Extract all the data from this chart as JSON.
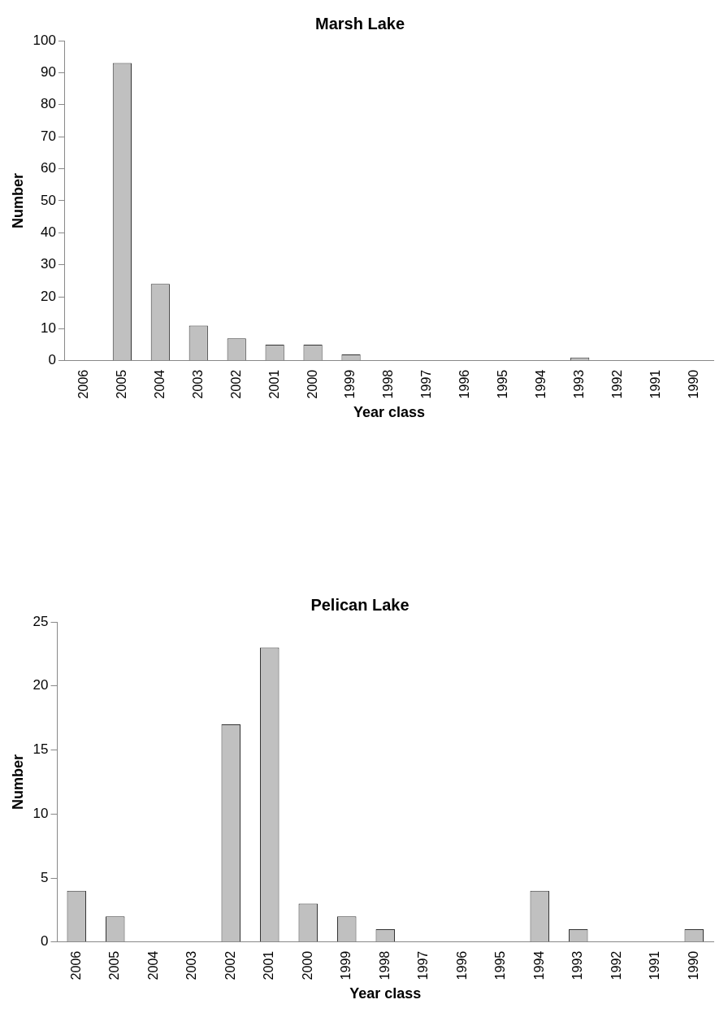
{
  "chart_data": [
    {
      "type": "bar",
      "title": "Marsh Lake",
      "xlabel": "Year class",
      "ylabel": "Number",
      "categories": [
        "2006",
        "2005",
        "2004",
        "2003",
        "2002",
        "2001",
        "2000",
        "1999",
        "1998",
        "1997",
        "1996",
        "1995",
        "1994",
        "1993",
        "1992",
        "1991",
        "1990"
      ],
      "values": [
        0,
        93,
        24,
        11,
        7,
        5,
        5,
        2,
        0,
        0,
        0,
        0,
        0,
        1,
        0,
        0,
        0
      ],
      "color": "#c0c0c0",
      "ylim": [
        0,
        100
      ],
      "yticks": [
        0,
        10,
        20,
        30,
        40,
        50,
        60,
        70,
        80,
        90,
        100
      ],
      "grid": false,
      "legend": false
    },
    {
      "type": "bar",
      "title": "Pelican Lake",
      "xlabel": "Year class",
      "ylabel": "Number",
      "categories": [
        "2006",
        "2005",
        "2004",
        "2003",
        "2002",
        "2001",
        "2000",
        "1999",
        "1998",
        "1997",
        "1996",
        "1995",
        "1994",
        "1993",
        "1992",
        "1991",
        "1990"
      ],
      "values": [
        4,
        2,
        0,
        0,
        17,
        23,
        3,
        2,
        1,
        0,
        0,
        0,
        4,
        1,
        0,
        0,
        1
      ],
      "color": "#c0c0c0",
      "ylim": [
        0,
        25
      ],
      "yticks": [
        0,
        5,
        10,
        15,
        20,
        25
      ],
      "grid": false,
      "legend": false
    }
  ]
}
